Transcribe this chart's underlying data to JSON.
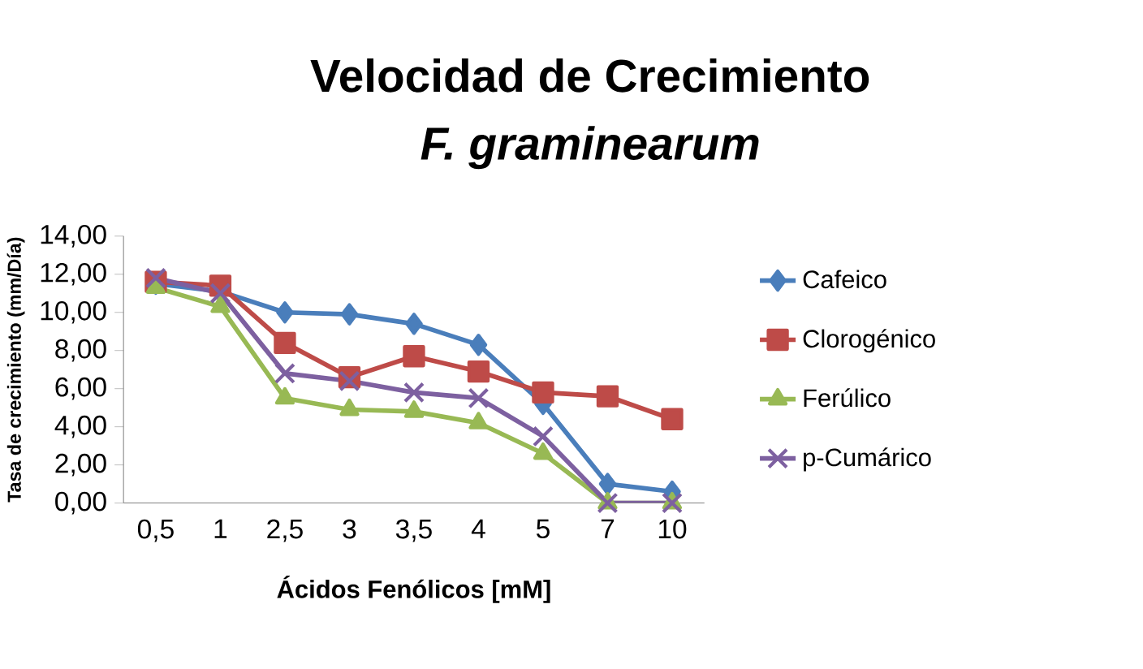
{
  "chart_data": {
    "type": "line",
    "title": "Velocidad de Crecimiento",
    "subtitle": "F. graminearum",
    "xlabel": "Ácidos Fenólicos [mM]",
    "ylabel": "Tasa de crecimiento (mm/Día)",
    "categories": [
      "0,5",
      "1",
      "2,5",
      "3",
      "3,5",
      "4",
      "5",
      "7",
      "10"
    ],
    "series": [
      {
        "name": "Cafeico",
        "color": "#4a7ebb",
        "marker": "diamond",
        "values": [
          11.5,
          11.1,
          10.0,
          9.9,
          9.4,
          8.3,
          5.2,
          1.0,
          0.6
        ]
      },
      {
        "name": "Clorogénico",
        "color": "#be4b48",
        "marker": "square",
        "values": [
          11.6,
          11.4,
          8.4,
          6.6,
          7.7,
          6.9,
          5.8,
          5.6,
          4.4
        ]
      },
      {
        "name": "Ferúlico",
        "color": "#98b954",
        "marker": "triangle",
        "values": [
          11.3,
          10.3,
          5.5,
          4.9,
          4.8,
          4.2,
          2.6,
          0,
          0
        ]
      },
      {
        "name": "p-Cumárico",
        "color": "#7d60a0",
        "marker": "cross",
        "values": [
          11.8,
          11.0,
          6.8,
          6.4,
          5.8,
          5.5,
          3.5,
          0,
          0
        ]
      }
    ],
    "ylim": [
      0,
      14
    ],
    "yticks": [
      {
        "value": 0,
        "label": "0,00"
      },
      {
        "value": 2,
        "label": "2,00"
      },
      {
        "value": 4,
        "label": "4,00"
      },
      {
        "value": 6,
        "label": "6,00"
      },
      {
        "value": 8,
        "label": "8,00"
      },
      {
        "value": 10,
        "label": "10,00"
      },
      {
        "value": 12,
        "label": "12,00"
      },
      {
        "value": 14,
        "label": "14,00"
      }
    ],
    "grid": false,
    "legend": "right",
    "line_style": "solid"
  }
}
